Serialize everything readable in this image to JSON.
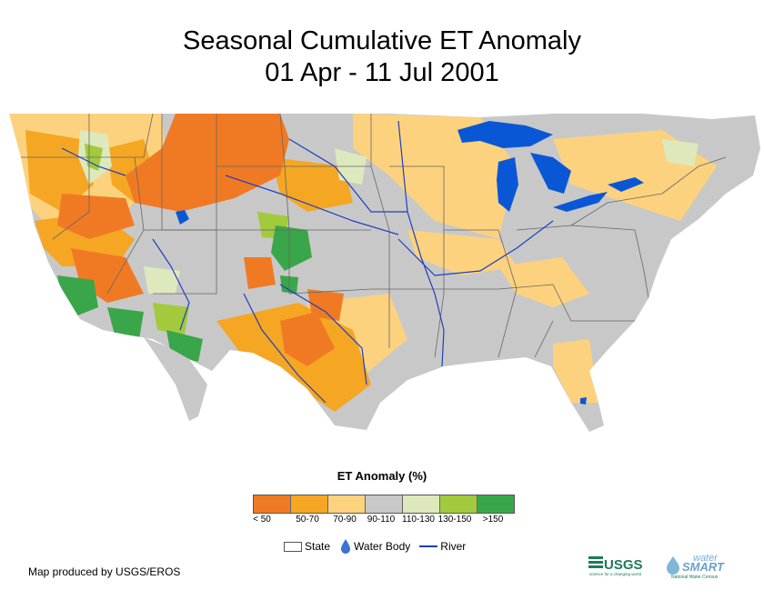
{
  "title": {
    "line1": "Seasonal Cumulative ET Anomaly",
    "line2": "01 Apr - 11 Jul 2001"
  },
  "legend": {
    "title": "ET Anomaly (%)",
    "classes": [
      {
        "label": "< 50",
        "color": "#f07a24"
      },
      {
        "label": "50-70",
        "color": "#f5a623"
      },
      {
        "label": "70-90",
        "color": "#fdd27e"
      },
      {
        "label": "90-110",
        "color": "#c8c8c8"
      },
      {
        "label": "110-130",
        "color": "#dde9bd"
      },
      {
        "label": "130-150",
        "color": "#a3c93d"
      },
      {
        "label": ">150",
        "color": "#3aa64a"
      }
    ]
  },
  "symbols": {
    "state": "State",
    "water_body": "Water Body",
    "river": "River"
  },
  "credit": "Map produced by USGS/EROS",
  "logos": {
    "usgs": "USGS",
    "usgs_tagline": "science for a changing world",
    "water": "water",
    "smart": "SMART",
    "census": "National Water Census"
  },
  "colors": {
    "water": "#0a57d6",
    "river": "#1e3fbf",
    "state_border": "#666666",
    "usgs_green": "#1c7a5a"
  }
}
